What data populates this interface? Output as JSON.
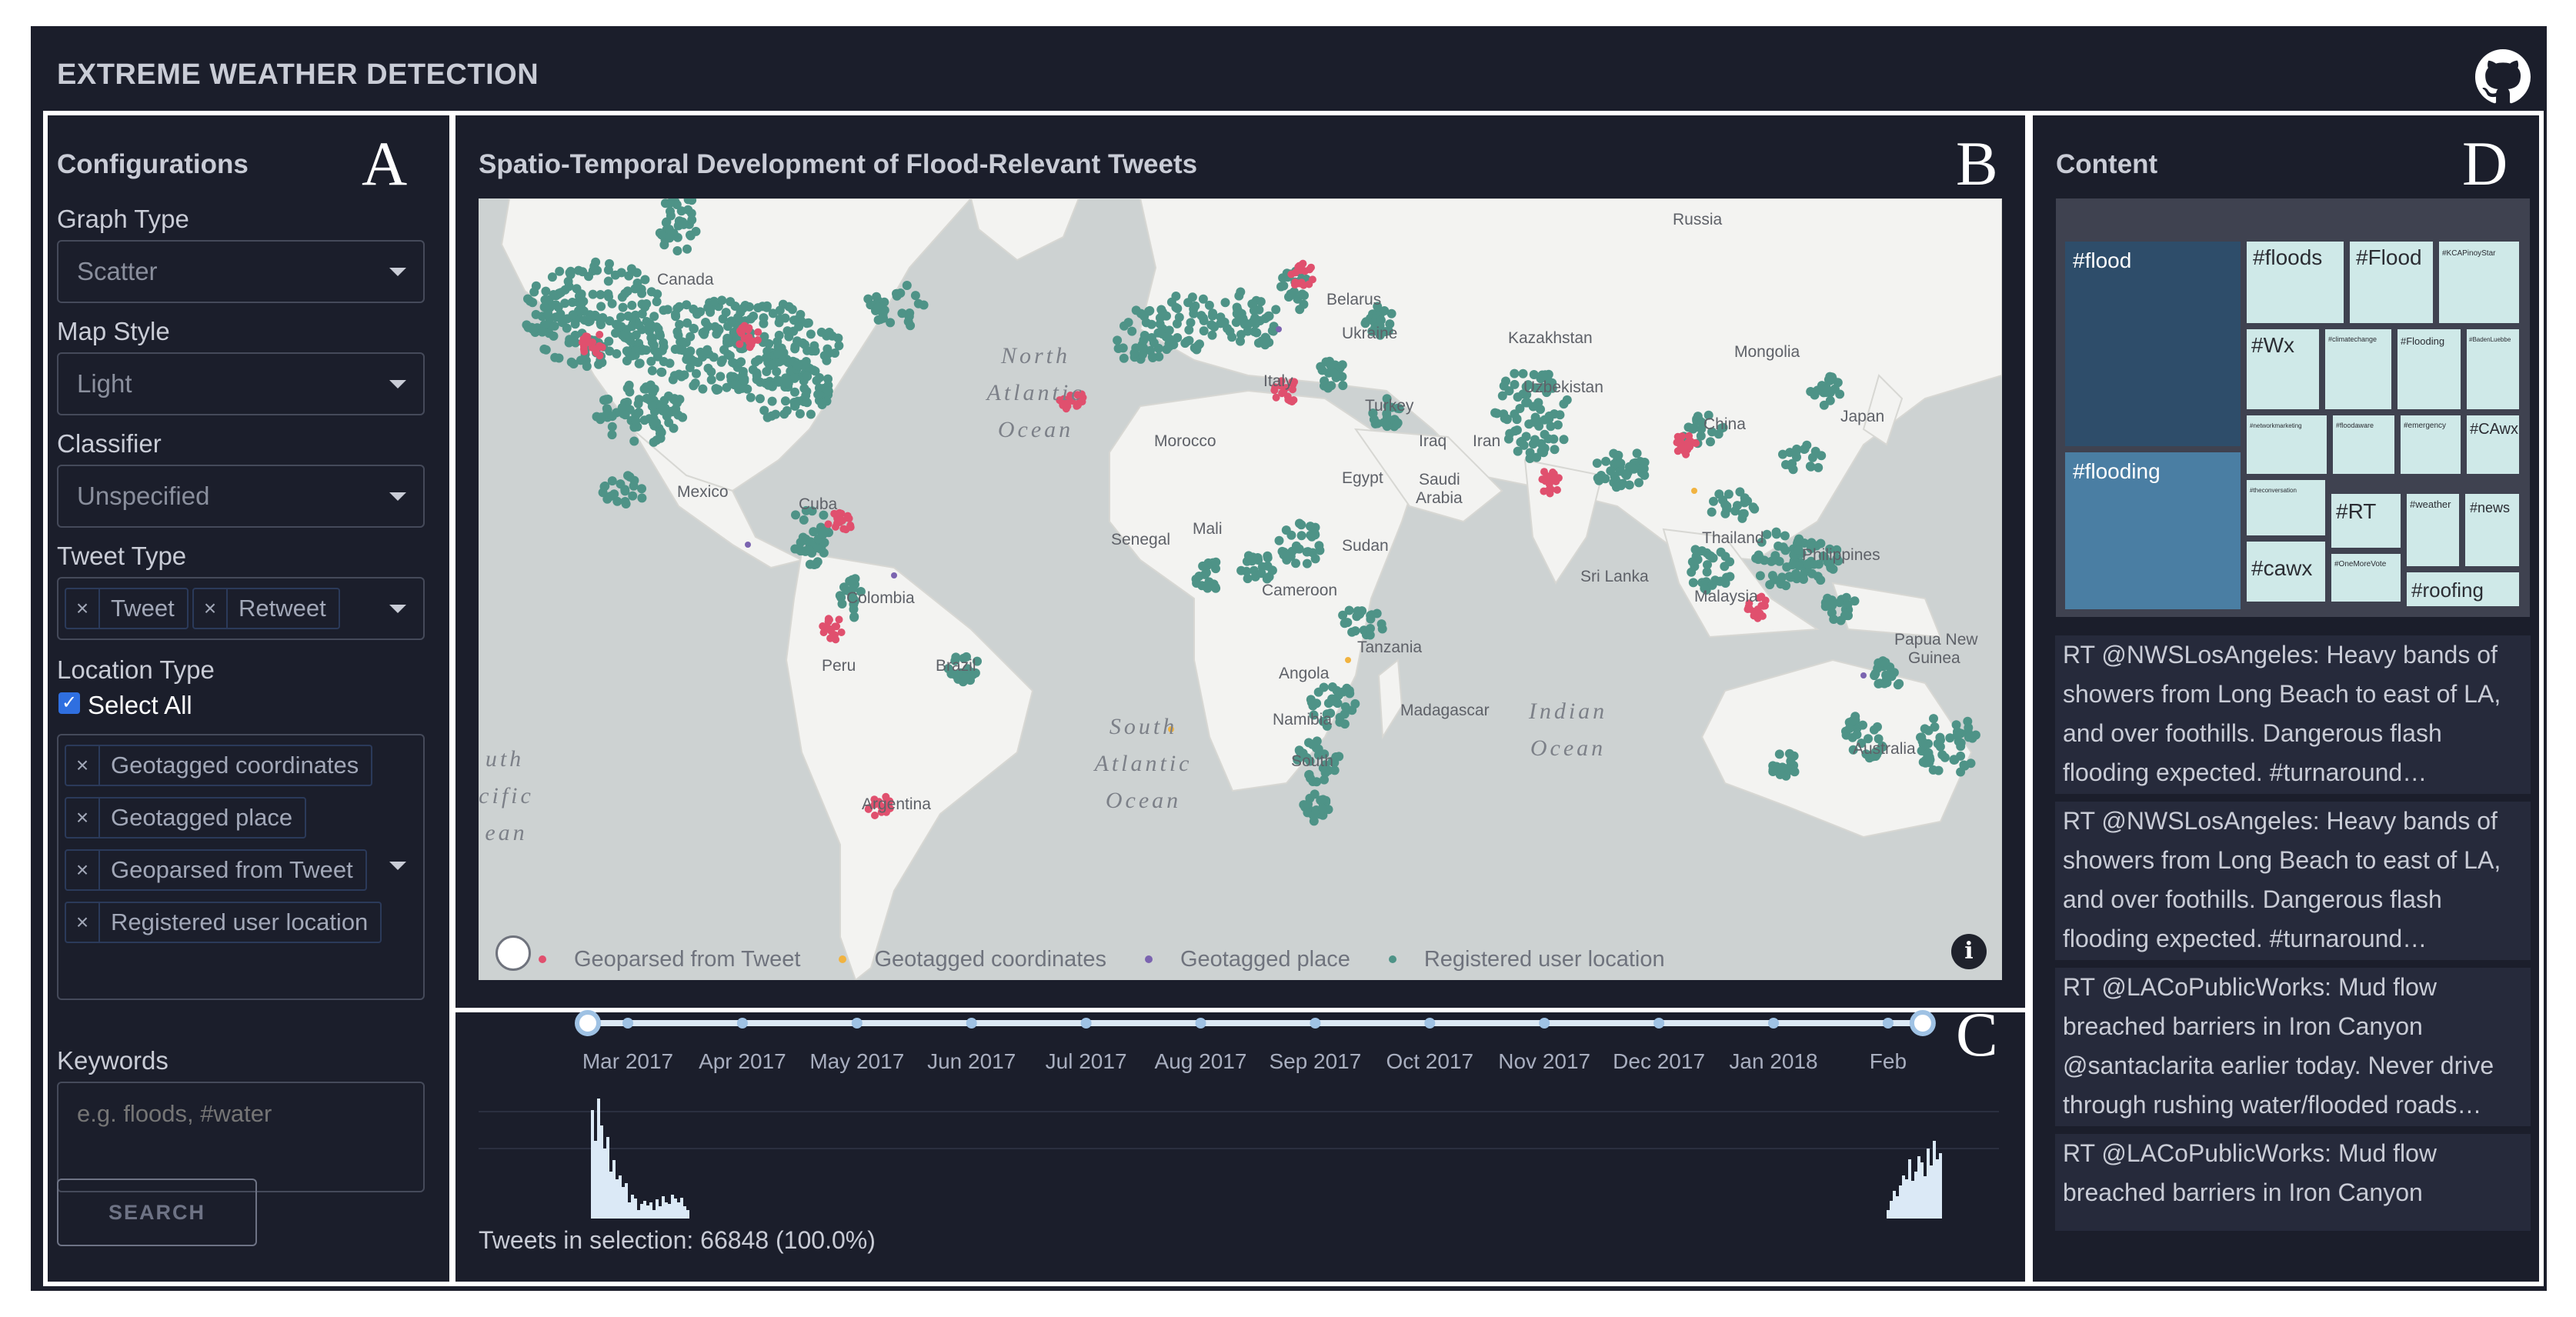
{
  "app": {
    "title": "EXTREME WEATHER DETECTION",
    "github_icon": "github-icon"
  },
  "panel_letters": {
    "a": "A",
    "b": "B",
    "c": "C",
    "d": "D"
  },
  "config": {
    "heading": "Configurations",
    "graph_type": {
      "label": "Graph Type",
      "value": "Scatter"
    },
    "map_style": {
      "label": "Map Style",
      "value": "Light"
    },
    "classifier": {
      "label": "Classifier",
      "value": "Unspecified"
    },
    "tweet_type": {
      "label": "Tweet Type",
      "chips": [
        "Tweet",
        "Retweet"
      ]
    },
    "location_type": {
      "label": "Location Type",
      "select_all_label": "Select All",
      "select_all_checked": true,
      "chips": [
        "Geotagged coordinates",
        "Geotagged place",
        "Geoparsed from Tweet",
        "Registered user location"
      ]
    },
    "keywords": {
      "label": "Keywords",
      "placeholder": "e.g. floods, #water"
    },
    "search_label": "SEARCH"
  },
  "map": {
    "title": "Spatio-Temporal Development of Flood-Relevant Tweets",
    "labels": [
      "Canada",
      "Russia",
      "Belarus",
      "Ukraine",
      "Kazakhstan",
      "Mongolia",
      "Uzbekistan",
      "Italy",
      "Turkey",
      "Iraq",
      "Iran",
      "China",
      "Japan",
      "Morocco",
      "Egypt",
      "Saudi",
      "Arabia",
      "Mexico",
      "Cuba",
      "Senegal",
      "Mali",
      "Sudan",
      "Thailand",
      "Sri Lanka",
      "Philippines",
      "Malaysia",
      "Papua New",
      "Guinea",
      "Colombia",
      "Cameroon",
      "Peru",
      "Brazil",
      "Angola",
      "Tanzania",
      "Namibia",
      "Madagascar",
      "South",
      "Argentina",
      "Australia",
      "North",
      "Atlantic",
      "Ocean",
      "South",
      "Atlantic",
      "Ocean",
      "Indian",
      "Ocean",
      "uth",
      "cific",
      "ean"
    ],
    "legend": [
      {
        "label": "Geoparsed from Tweet",
        "color": "#e0506e"
      },
      {
        "label": "Geotagged coordinates",
        "color": "#f1b340"
      },
      {
        "label": "Geotagged place",
        "color": "#7b64b0"
      },
      {
        "label": "Registered user location",
        "color": "#4e9387"
      }
    ],
    "point_color": "#4e9387",
    "info_icon": "info-icon",
    "mapbox_icon": "mapbox-logo-icon"
  },
  "timeline": {
    "months": [
      "Mar 2017",
      "Apr 2017",
      "May 2017",
      "Jun 2017",
      "Jul 2017",
      "Aug 2017",
      "Sep 2017",
      "Oct 2017",
      "Nov 2017",
      "Dec 2017",
      "Jan 2018",
      "Feb"
    ],
    "selection_text": "Tweets in selection: 66848 (100.0%)",
    "selected_fraction": 1.0
  },
  "content": {
    "heading": "Content",
    "treemap": [
      "#flood",
      "#flooding",
      "#floods",
      "#Flood",
      "#KCAPinoyStar",
      "#Wx",
      "#climatechange",
      "#Flooding",
      "#BadenLuebbe",
      "#networkmarketing",
      "#floodaware",
      "#emergency",
      "#CAwx",
      "#theconversation",
      "#RT",
      "#weather",
      "#news",
      "#cawx",
      "#OneMoreVote",
      "#roofing"
    ],
    "tweets": [
      [
        "RT @NWSLosAngeles: Heavy bands of",
        "showers from Long Beach to east of LA,",
        "and over foothills. Dangerous flash",
        "flooding expected. #turnaround…"
      ],
      [
        "RT @NWSLosAngeles: Heavy bands of",
        "showers from Long Beach to east of LA,",
        "and over foothills. Dangerous flash",
        "flooding expected. #turnaround…"
      ],
      [
        "RT @LACoPublicWorks: Mud flow",
        "breached barriers in Iron Canyon",
        "@santaclarita earlier today. Never drive",
        "through rushing water/flooded roads…"
      ],
      [
        "RT @LACoPublicWorks: Mud flow",
        "breached barriers in Iron Canyon"
      ]
    ]
  }
}
